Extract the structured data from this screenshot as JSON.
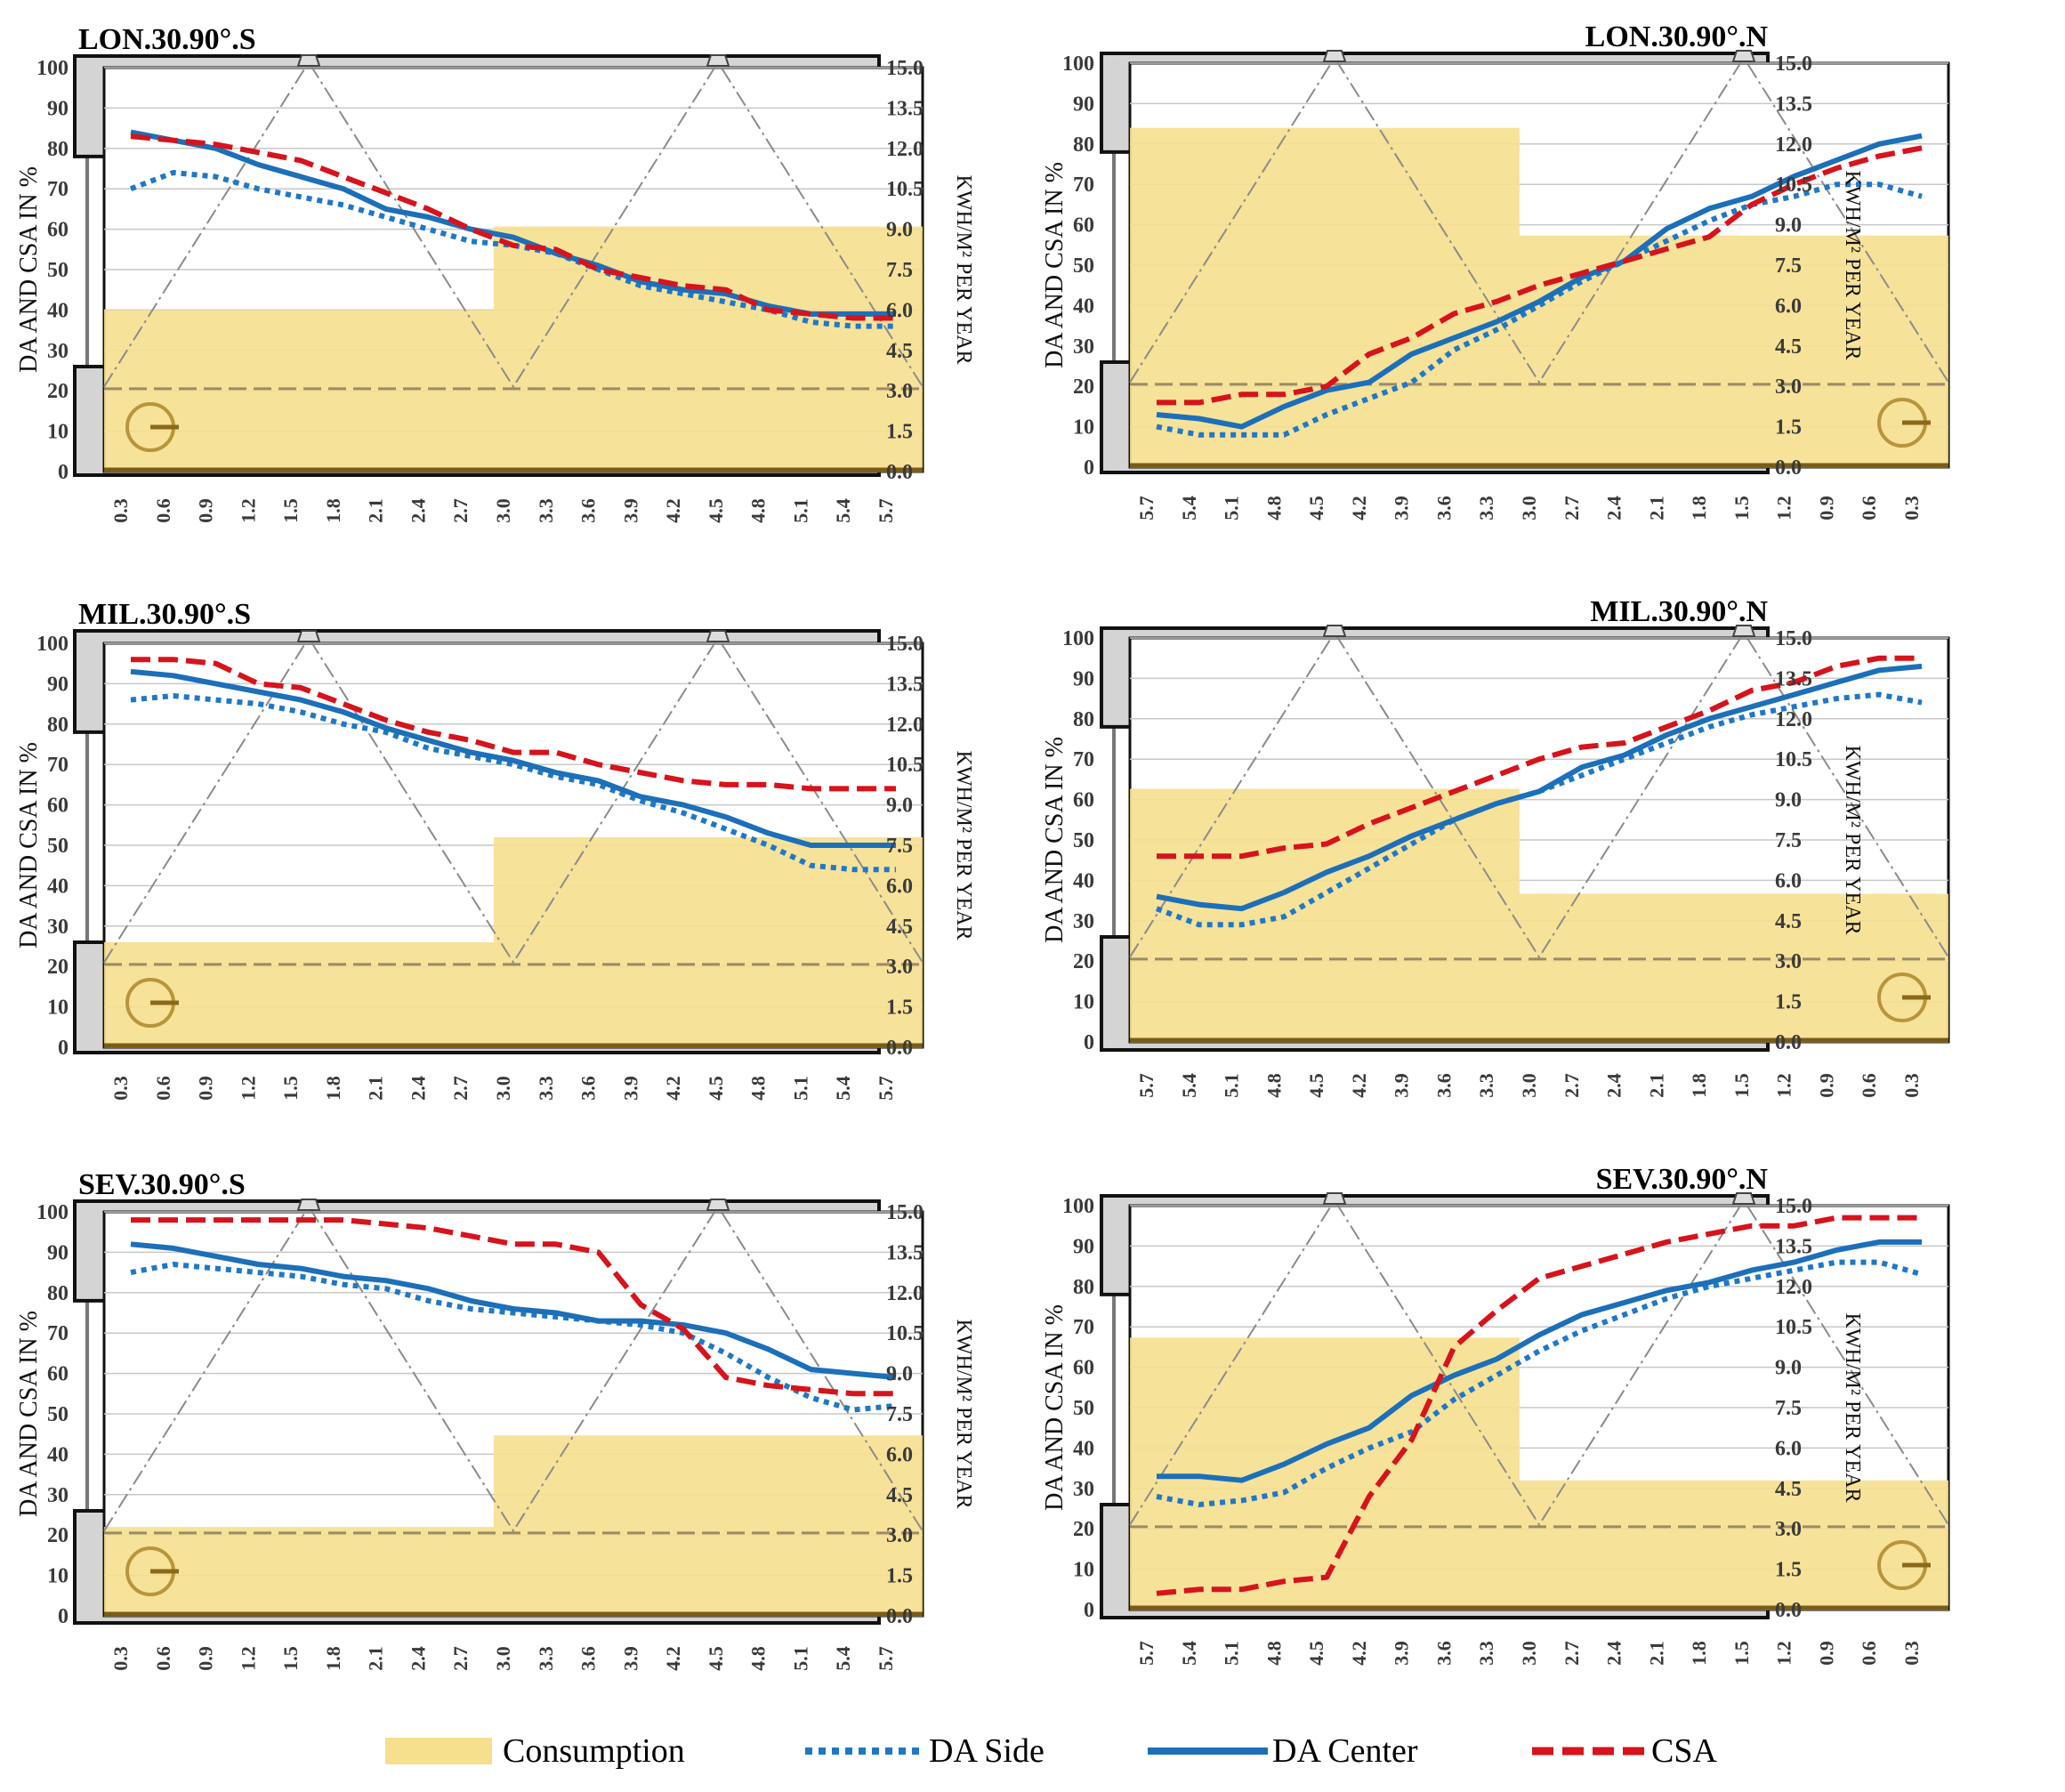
{
  "colors": {
    "consumption": "#f6df8e",
    "da_side": "#1f78c8",
    "da_center": "#1c6fb9",
    "csa": "#d7131c",
    "frame": "#d4d4d4",
    "grid": "#c8c8c8"
  },
  "legend": {
    "consumption": "Consumption",
    "da_side": "DA Side",
    "da_center": "DA Center",
    "csa": "CSA"
  },
  "chart_data": [
    {
      "type": "line",
      "title": "LON.30.90°.S",
      "orientation": "S",
      "ylabel": "DA AND CSA IN %",
      "y2label": "KWH/M² PER YEAR",
      "ylim": [
        0,
        100
      ],
      "y2lim": [
        0,
        15
      ],
      "yticks": [
        "0",
        "10",
        "20",
        "30",
        "40",
        "50",
        "60",
        "70",
        "80",
        "90",
        "100"
      ],
      "y2ticks": [
        "0.0",
        "1.5",
        "3.0",
        "4.5",
        "6.0",
        "7.5",
        "9.0",
        "10.5",
        "12.0",
        "13.5",
        "15.0"
      ],
      "categories": [
        "0.3",
        "0.6",
        "0.9",
        "1.2",
        "1.5",
        "1.8",
        "2.1",
        "2.4",
        "2.7",
        "3.0",
        "3.3",
        "3.6",
        "3.9",
        "4.2",
        "4.5",
        "4.8",
        "5.1",
        "5.4",
        "5.7"
      ],
      "consumption": [
        6.0,
        9.1
      ],
      "series": [
        {
          "name": "DA Side",
          "values": [
            70,
            74,
            73,
            70,
            68,
            66,
            63,
            60,
            57,
            56,
            54,
            50,
            46,
            44,
            42,
            40,
            37,
            36,
            36
          ]
        },
        {
          "name": "DA Center",
          "values": [
            84,
            82,
            80,
            76,
            73,
            70,
            65,
            63,
            60,
            58,
            54,
            51,
            47,
            45,
            44,
            41,
            39,
            39,
            39
          ]
        },
        {
          "name": "CSA",
          "values": [
            83,
            82,
            81,
            79,
            77,
            73,
            69,
            65,
            60,
            56,
            55,
            50,
            48,
            46,
            45,
            40,
            39,
            38,
            38
          ]
        }
      ]
    },
    {
      "type": "line",
      "title": "LON.30.90°.N",
      "orientation": "N",
      "ylabel": "DA AND CSA IN %",
      "y2label": "KWH/M² PER YEAR",
      "ylim": [
        0,
        100
      ],
      "y2lim": [
        0,
        15
      ],
      "yticks": [
        "0",
        "10",
        "20",
        "30",
        "40",
        "50",
        "60",
        "70",
        "80",
        "90",
        "100"
      ],
      "y2ticks": [
        "0.0",
        "1.5",
        "3.0",
        "4.5",
        "6.0",
        "7.5",
        "9.0",
        "10.5",
        "12.0",
        "13.5",
        "15.0"
      ],
      "categories": [
        "5.7",
        "5.4",
        "5.1",
        "4.8",
        "4.5",
        "4.2",
        "3.9",
        "3.6",
        "3.3",
        "3.0",
        "2.7",
        "2.4",
        "2.1",
        "1.8",
        "1.5",
        "1.2",
        "0.9",
        "0.6",
        "0.3"
      ],
      "consumption": [
        12.6,
        8.6
      ],
      "series": [
        {
          "name": "DA Side",
          "values": [
            10,
            8,
            8,
            8,
            13,
            17,
            21,
            29,
            34,
            40,
            46,
            51,
            56,
            61,
            65,
            67,
            70,
            70,
            67
          ]
        },
        {
          "name": "DA Center",
          "values": [
            13,
            12,
            10,
            15,
            19,
            21,
            28,
            32,
            36,
            41,
            47,
            51,
            59,
            64,
            67,
            72,
            76,
            80,
            82
          ]
        },
        {
          "name": "CSA",
          "values": [
            16,
            16,
            18,
            18,
            20,
            28,
            32,
            38,
            41,
            45,
            48,
            51,
            54,
            57,
            65,
            70,
            74,
            77,
            79
          ]
        }
      ]
    },
    {
      "type": "line",
      "title": "MIL.30.90°.S",
      "orientation": "S",
      "ylabel": "DA AND CSA IN %",
      "y2label": "KWH/M² PER YEAR",
      "ylim": [
        0,
        100
      ],
      "y2lim": [
        0,
        15
      ],
      "yticks": [
        "0",
        "10",
        "20",
        "30",
        "40",
        "50",
        "60",
        "70",
        "80",
        "90",
        "100"
      ],
      "y2ticks": [
        "0.0",
        "1.5",
        "3.0",
        "4.5",
        "6.0",
        "7.5",
        "9.0",
        "10.5",
        "12.0",
        "13.5",
        "15.0"
      ],
      "categories": [
        "0.3",
        "0.6",
        "0.9",
        "1.2",
        "1.5",
        "1.8",
        "2.1",
        "2.4",
        "2.7",
        "3.0",
        "3.3",
        "3.6",
        "3.9",
        "4.2",
        "4.5",
        "4.8",
        "5.1",
        "5.4",
        "5.7"
      ],
      "consumption": [
        3.9,
        7.8
      ],
      "series": [
        {
          "name": "DA Side",
          "values": [
            86,
            87,
            86,
            85,
            83,
            80,
            78,
            74,
            72,
            70,
            67,
            65,
            61,
            58,
            54,
            50,
            45,
            44,
            44
          ]
        },
        {
          "name": "DA Center",
          "values": [
            93,
            92,
            90,
            88,
            86,
            83,
            79,
            76,
            73,
            71,
            68,
            66,
            62,
            60,
            57,
            53,
            50,
            50,
            50
          ]
        },
        {
          "name": "CSA",
          "values": [
            96,
            96,
            95,
            90,
            89,
            85,
            81,
            78,
            76,
            73,
            73,
            70,
            68,
            66,
            65,
            65,
            64,
            64,
            64
          ]
        }
      ]
    },
    {
      "type": "line",
      "title": "MIL.30.90°.N",
      "orientation": "N",
      "ylabel": "DA AND CSA IN %",
      "y2label": "KWH/M² PER YEAR",
      "ylim": [
        0,
        100
      ],
      "y2lim": [
        0,
        15
      ],
      "yticks": [
        "0",
        "10",
        "20",
        "30",
        "40",
        "50",
        "60",
        "70",
        "80",
        "90",
        "100"
      ],
      "y2ticks": [
        "0.0",
        "1.5",
        "3.0",
        "4.5",
        "6.0",
        "7.5",
        "9.0",
        "10.5",
        "12.0",
        "13.5",
        "15.0"
      ],
      "categories": [
        "5.7",
        "5.4",
        "5.1",
        "4.8",
        "4.5",
        "4.2",
        "3.9",
        "3.6",
        "3.3",
        "3.0",
        "2.7",
        "2.4",
        "2.1",
        "1.8",
        "1.5",
        "1.2",
        "0.9",
        "0.6",
        "0.3"
      ],
      "consumption": [
        9.4,
        5.5
      ],
      "series": [
        {
          "name": "DA Side",
          "values": [
            33,
            29,
            29,
            31,
            37,
            43,
            49,
            55,
            59,
            62,
            66,
            70,
            74,
            78,
            81,
            83,
            85,
            86,
            84
          ]
        },
        {
          "name": "DA Center",
          "values": [
            36,
            34,
            33,
            37,
            42,
            46,
            51,
            55,
            59,
            62,
            68,
            71,
            76,
            80,
            83,
            86,
            89,
            92,
            93
          ]
        },
        {
          "name": "CSA",
          "values": [
            46,
            46,
            46,
            48,
            49,
            54,
            58,
            62,
            66,
            70,
            73,
            74,
            78,
            82,
            87,
            89,
            93,
            95,
            95
          ]
        }
      ]
    },
    {
      "type": "line",
      "title": "SEV.30.90°.S",
      "orientation": "S",
      "ylabel": "DA AND CSA IN %",
      "y2label": "KWH/M² PER YEAR",
      "ylim": [
        0,
        100
      ],
      "y2lim": [
        0,
        15
      ],
      "yticks": [
        "0",
        "10",
        "20",
        "30",
        "40",
        "50",
        "60",
        "70",
        "80",
        "90",
        "100"
      ],
      "y2ticks": [
        "0.0",
        "1.5",
        "3.0",
        "4.5",
        "6.0",
        "7.5",
        "9.0",
        "10.5",
        "12.0",
        "13.5",
        "15.0"
      ],
      "categories": [
        "0.3",
        "0.6",
        "0.9",
        "1.2",
        "1.5",
        "1.8",
        "2.1",
        "2.4",
        "2.7",
        "3.0",
        "3.3",
        "3.6",
        "3.9",
        "4.2",
        "4.5",
        "4.8",
        "5.1",
        "5.4",
        "5.7"
      ],
      "consumption": [
        3.3,
        6.7
      ],
      "series": [
        {
          "name": "DA Side",
          "values": [
            85,
            87,
            86,
            85,
            84,
            82,
            81,
            78,
            76,
            75,
            74,
            73,
            72,
            70,
            65,
            59,
            54,
            51,
            52
          ]
        },
        {
          "name": "DA Center",
          "values": [
            92,
            91,
            89,
            87,
            86,
            84,
            83,
            81,
            78,
            76,
            75,
            73,
            73,
            72,
            70,
            66,
            61,
            60,
            59
          ]
        },
        {
          "name": "CSA",
          "values": [
            98,
            98,
            98,
            98,
            98,
            98,
            97,
            96,
            94,
            92,
            92,
            90,
            77,
            71,
            59,
            57,
            56,
            55,
            55
          ]
        }
      ]
    },
    {
      "type": "line",
      "title": "SEV.30.90°.N",
      "orientation": "N",
      "ylabel": "DA AND CSA IN %",
      "y2label": "KWH/M² PER YEAR",
      "ylim": [
        0,
        100
      ],
      "y2lim": [
        0,
        15
      ],
      "yticks": [
        "0",
        "10",
        "20",
        "30",
        "40",
        "50",
        "60",
        "70",
        "80",
        "90",
        "100"
      ],
      "y2ticks": [
        "0.0",
        "1.5",
        "3.0",
        "4.5",
        "6.0",
        "7.5",
        "9.0",
        "10.5",
        "12.0",
        "13.5",
        "15.0"
      ],
      "categories": [
        "5.7",
        "5.4",
        "5.1",
        "4.8",
        "4.5",
        "4.2",
        "3.9",
        "3.6",
        "3.3",
        "3.0",
        "2.7",
        "2.4",
        "2.1",
        "1.8",
        "1.5",
        "1.2",
        "0.9",
        "0.6",
        "0.3"
      ],
      "consumption": [
        10.1,
        4.8
      ],
      "series": [
        {
          "name": "DA Side",
          "values": [
            28,
            26,
            27,
            29,
            35,
            40,
            44,
            52,
            58,
            64,
            69,
            73,
            77,
            80,
            82,
            84,
            86,
            86,
            83
          ]
        },
        {
          "name": "DA Center",
          "values": [
            33,
            33,
            32,
            36,
            41,
            45,
            53,
            58,
            62,
            68,
            73,
            76,
            79,
            81,
            84,
            86,
            89,
            91,
            91
          ]
        },
        {
          "name": "CSA",
          "values": [
            4,
            5,
            5,
            7,
            8,
            28,
            42,
            65,
            74,
            82,
            85,
            88,
            91,
            93,
            95,
            95,
            97,
            97,
            97
          ]
        }
      ]
    }
  ]
}
